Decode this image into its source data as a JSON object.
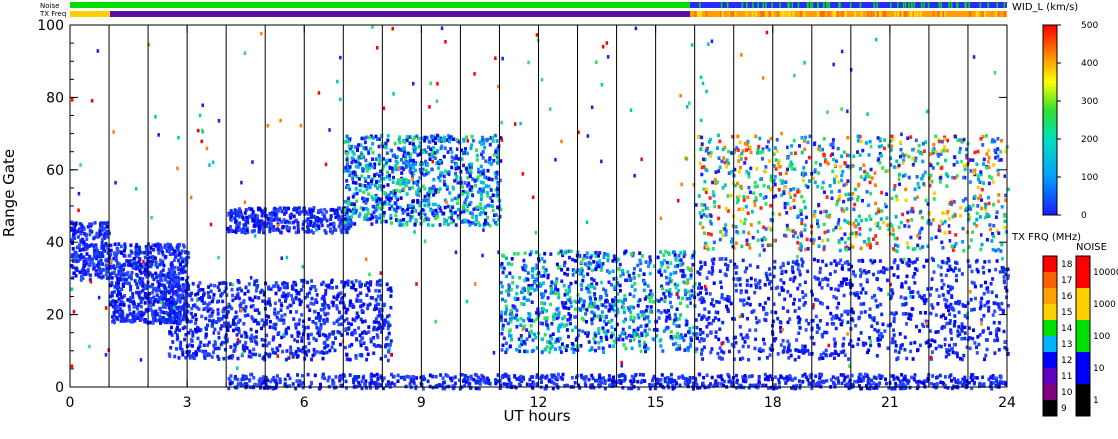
{
  "chart_data": {
    "type": "heatmap",
    "xlabel": "UT hours",
    "ylabel": "Range Gate",
    "xlim": [
      0,
      24
    ],
    "ylim": [
      0,
      100
    ],
    "x_ticks": [
      "0",
      "3",
      "6",
      "9",
      "12",
      "15",
      "18",
      "21",
      "24"
    ],
    "y_ticks": [
      "0",
      "20",
      "40",
      "60",
      "80",
      "100"
    ],
    "grid": "vertical lines at scan boundaries",
    "scan_boundaries_hours": [
      1.0,
      2.0,
      3.0,
      4.0,
      5.0,
      6.0,
      7.0,
      8.0,
      9.0,
      10.0,
      11.0,
      12.0,
      13.0,
      14.0,
      15.0,
      16.0,
      17.0,
      18.0,
      19.0,
      20.0,
      21.0,
      22.0,
      23.0
    ],
    "top_bars": {
      "noise_label": "Noise",
      "txfreq_label": "TX Freq"
    },
    "colorbar_width": {
      "title": "WID_L (km/s)",
      "ticks": [
        "500",
        "400",
        "300",
        "200",
        "100",
        "0"
      ],
      "range": [
        0,
        500
      ]
    },
    "colorbar_txfreq": {
      "title": "TX FRQ (MHz)",
      "ticks": [
        "18",
        "17",
        "16",
        "15",
        "14",
        "13",
        "12",
        "11",
        "10",
        "9"
      ],
      "colors": [
        "#ff0000",
        "#ff6000",
        "#ffa000",
        "#ffd000",
        "#00e000",
        "#00b4ff",
        "#0000ff",
        "#6000c0",
        "#800080",
        "#000000"
      ]
    },
    "colorbar_noise": {
      "title": "NOISE",
      "ticks": [
        "10000",
        "1000",
        "100",
        "10",
        "1"
      ],
      "colors": [
        "#ff0000",
        "#ffd000",
        "#00e000",
        "#0000ff",
        "#000000"
      ]
    },
    "regions": [
      {
        "name": "echo-band-0-4h",
        "x": [
          0.0,
          1.0
        ],
        "y": [
          30,
          46
        ],
        "level": "low"
      },
      {
        "name": "echo-band-1-3h",
        "x": [
          1.0,
          3.0
        ],
        "y": [
          18,
          40
        ],
        "level": "low"
      },
      {
        "name": "echo-band-3-8h",
        "x": [
          2.5,
          8.2
        ],
        "y": [
          8,
          30
        ],
        "level": "low"
      },
      {
        "name": "echo-band-4-7h-upper",
        "x": [
          4.0,
          7.2
        ],
        "y": [
          43,
          50
        ],
        "level": "low"
      },
      {
        "name": "echo-band-7-11h",
        "x": [
          7.0,
          11.0
        ],
        "y": [
          45,
          70
        ],
        "level": "mid"
      },
      {
        "name": "echo-band-11-16h",
        "x": [
          11.0,
          16.0
        ],
        "y": [
          10,
          38
        ],
        "level": "mid"
      },
      {
        "name": "echo-band-16-24h-lower",
        "x": [
          16.0,
          24.0
        ],
        "y": [
          8,
          36
        ],
        "level": "low"
      },
      {
        "name": "echo-band-16-24h-upper",
        "x": [
          16.0,
          24.0
        ],
        "y": [
          38,
          70
        ],
        "level": "high"
      },
      {
        "name": "ground-gates",
        "x": [
          4.0,
          24.0
        ],
        "y": [
          0,
          4
        ],
        "level": "low"
      }
    ]
  }
}
